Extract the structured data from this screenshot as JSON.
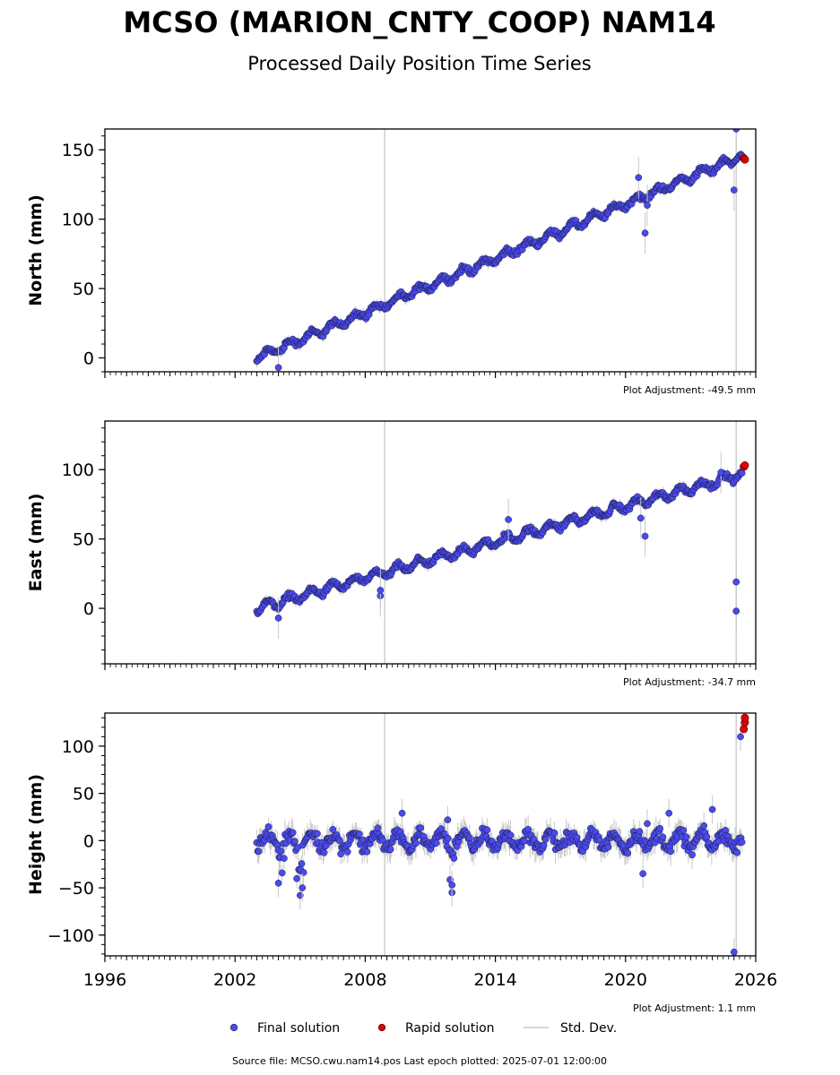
{
  "header": {
    "title": "MCSO (MARION_CNTY_COOP) NAM14",
    "subtitle": "Processed Daily Position Time Series"
  },
  "legend": {
    "final": "Final solution",
    "rapid": "Rapid solution",
    "std": "Std. Dev."
  },
  "footer": {
    "source": "Source file: MCSO.cwu.nam14.pos  Last epoch plotted: 2025-07-01 12:00:00"
  },
  "colors": {
    "final": "#4a4aee",
    "rapid": "#e00000",
    "std": "#c8c8c8",
    "edge": "#1a1a3a"
  },
  "x_axis": {
    "range": [
      1996,
      2026
    ],
    "ticks": [
      1996,
      2002,
      2008,
      2014,
      2020,
      2026
    ],
    "tick_labels": [
      "1996",
      "2002",
      "2008",
      "2014",
      "2020",
      "2026"
    ]
  },
  "chart_data": [
    {
      "type": "scatter",
      "ylabel": "North (mm)",
      "adjustment": "Plot Adjustment: -49.5 mm",
      "xlim": [
        1996,
        2026
      ],
      "ylim": [
        -10,
        165
      ],
      "yticks": [
        0,
        50,
        100,
        150
      ],
      "ytick_labels": [
        "0",
        "50",
        "100",
        "150"
      ],
      "trend": {
        "x": [
          2003.0,
          2025.4
        ],
        "y": [
          0,
          146
        ]
      },
      "seasonal_amplitude": 2.5,
      "vertical_lines": [
        2008.9,
        2025.1
      ],
      "series": [
        {
          "name": "Final solution",
          "x": [
            2003.0,
            2004.0,
            2005.0,
            2006.0,
            2007.0,
            2008.0,
            2009.0,
            2010.0,
            2011.0,
            2012.0,
            2013.0,
            2014.0,
            2015.0,
            2016.0,
            2017.0,
            2018.0,
            2019.0,
            2020.0,
            2021.0,
            2022.0,
            2023.0,
            2024.0,
            2025.0,
            2025.4
          ],
          "y": [
            0,
            7,
            14,
            20,
            27,
            33,
            40,
            46,
            53,
            59,
            66,
            72,
            79,
            85,
            92,
            98,
            105,
            111,
            118,
            124,
            131,
            137,
            144,
            146
          ]
        },
        {
          "name": "Rapid solution",
          "x": [
            2025.45,
            2025.5
          ],
          "y": [
            144,
            143
          ]
        }
      ],
      "outliers": [
        {
          "x": 2004.0,
          "y": -7
        },
        {
          "x": 2020.6,
          "y": 130
        },
        {
          "x": 2020.9,
          "y": 90
        },
        {
          "x": 2021.0,
          "y": 110
        },
        {
          "x": 2025.0,
          "y": 121
        },
        {
          "x": 2025.1,
          "y": 165
        }
      ]
    },
    {
      "type": "scatter",
      "ylabel": "East (mm)",
      "adjustment": "Plot Adjustment: -34.7 mm",
      "xlim": [
        1996,
        2026
      ],
      "ylim": [
        -40,
        135
      ],
      "yticks": [
        0,
        50,
        100
      ],
      "ytick_labels": [
        "0",
        "50",
        "100"
      ],
      "trend": {
        "x": [
          2003.0,
          2025.4
        ],
        "y": [
          0,
          97
        ]
      },
      "seasonal_amplitude": 3.0,
      "vertical_lines": [
        2008.9,
        2025.1
      ],
      "series": [
        {
          "name": "Final solution",
          "x": [
            2003.0,
            2004.0,
            2005.0,
            2006.0,
            2007.0,
            2008.0,
            2009.0,
            2010.0,
            2011.0,
            2012.0,
            2013.0,
            2014.0,
            2015.0,
            2016.0,
            2017.0,
            2018.0,
            2019.0,
            2020.0,
            2021.0,
            2022.0,
            2023.0,
            2024.0,
            2025.0,
            2025.4
          ],
          "y": [
            0,
            5,
            9,
            14,
            18,
            22,
            27,
            31,
            36,
            40,
            44,
            49,
            53,
            58,
            62,
            66,
            71,
            75,
            79,
            84,
            88,
            92,
            96,
            99
          ]
        },
        {
          "name": "Rapid solution",
          "x": [
            2025.45,
            2025.5
          ],
          "y": [
            102,
            103
          ]
        }
      ],
      "outliers": [
        {
          "x": 2004.0,
          "y": -7
        },
        {
          "x": 2008.7,
          "y": 9
        },
        {
          "x": 2008.7,
          "y": 13
        },
        {
          "x": 2014.6,
          "y": 64
        },
        {
          "x": 2020.7,
          "y": 65
        },
        {
          "x": 2020.9,
          "y": 52
        },
        {
          "x": 2024.4,
          "y": 98
        },
        {
          "x": 2025.1,
          "y": 19
        },
        {
          "x": 2025.1,
          "y": -2
        }
      ]
    },
    {
      "type": "scatter",
      "ylabel": "Height (mm)",
      "adjustment": "Plot Adjustment: 1.1 mm",
      "xlim": [
        1996,
        2026
      ],
      "ylim": [
        -122,
        135
      ],
      "yticks": [
        -100,
        -50,
        0,
        50,
        100
      ],
      "ytick_labels": [
        "−100",
        "−50",
        "0",
        "50",
        "100"
      ],
      "trend": {
        "x": [
          2003.0,
          2025.4
        ],
        "y": [
          0,
          0
        ]
      },
      "seasonal_amplitude": 8.0,
      "vertical_lines": [
        2008.9,
        2025.1
      ],
      "series": [
        {
          "name": "Final solution",
          "x": [
            2003.0,
            2004.0,
            2005.0,
            2006.0,
            2007.0,
            2008.0,
            2009.0,
            2010.0,
            2011.0,
            2012.0,
            2013.0,
            2014.0,
            2015.0,
            2016.0,
            2017.0,
            2018.0,
            2019.0,
            2020.0,
            2021.0,
            2022.0,
            2023.0,
            2024.0,
            2025.0,
            2025.4
          ],
          "y": [
            0,
            0,
            0,
            0,
            0,
            0,
            0,
            0,
            0,
            0,
            0,
            0,
            0,
            0,
            0,
            0,
            0,
            0,
            0,
            0,
            0,
            0,
            0,
            0
          ]
        },
        {
          "name": "Rapid solution",
          "x": [
            2025.45,
            2025.5,
            2025.5
          ],
          "y": [
            118,
            125,
            130
          ]
        }
      ],
      "outliers": [
        {
          "x": 2004.0,
          "y": -45
        },
        {
          "x": 2005.0,
          "y": -58
        },
        {
          "x": 2005.1,
          "y": -50
        },
        {
          "x": 2009.7,
          "y": 29
        },
        {
          "x": 2011.8,
          "y": 22
        },
        {
          "x": 2012.0,
          "y": -55
        },
        {
          "x": 2012.0,
          "y": -47
        },
        {
          "x": 2020.8,
          "y": -35
        },
        {
          "x": 2021.0,
          "y": 18
        },
        {
          "x": 2022.0,
          "y": 29
        },
        {
          "x": 2024.0,
          "y": 33
        },
        {
          "x": 2025.0,
          "y": -118
        },
        {
          "x": 2025.3,
          "y": 110
        }
      ]
    }
  ]
}
